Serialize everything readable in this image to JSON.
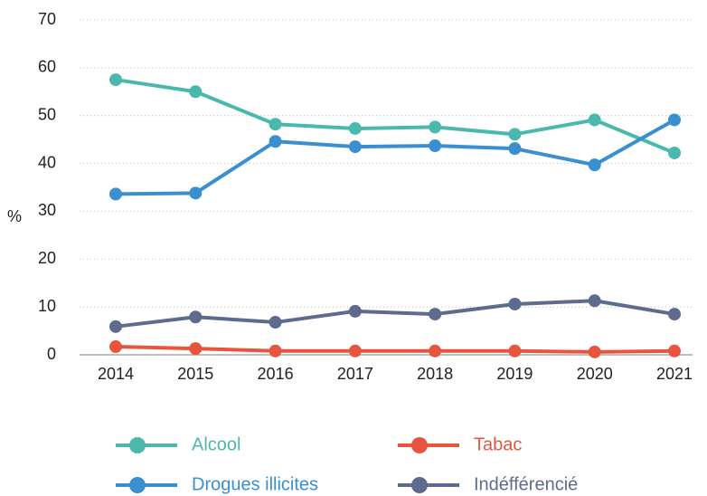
{
  "chart_data": {
    "type": "line",
    "y_label": "%",
    "categories": [
      "2014",
      "2015",
      "2016",
      "2017",
      "2018",
      "2019",
      "2020",
      "2021"
    ],
    "series": [
      {
        "name": "Alcool",
        "color": "#4bb8ad",
        "values": [
          57.5,
          55,
          48.2,
          47.3,
          47.6,
          46.1,
          49.1,
          42.2
        ]
      },
      {
        "name": "Tabac",
        "color": "#e8553e",
        "values": [
          1.7,
          1.3,
          0.8,
          0.8,
          0.8,
          0.8,
          0.6,
          0.8
        ]
      },
      {
        "name": "Drogues illicites",
        "color": "#3a8fd0",
        "values": [
          33.6,
          33.8,
          44.6,
          43.5,
          43.7,
          43.1,
          39.7,
          49.1
        ]
      },
      {
        "name": "Indéfférencié",
        "color": "#5f6b8e",
        "values": [
          5.9,
          7.9,
          6.8,
          9.1,
          8.5,
          10.6,
          11.3,
          8.5
        ]
      }
    ],
    "ylim": [
      0,
      70
    ],
    "yticks": [
      0,
      10,
      20,
      30,
      40,
      50,
      60,
      70
    ],
    "grid": true,
    "legend": "bottom"
  }
}
